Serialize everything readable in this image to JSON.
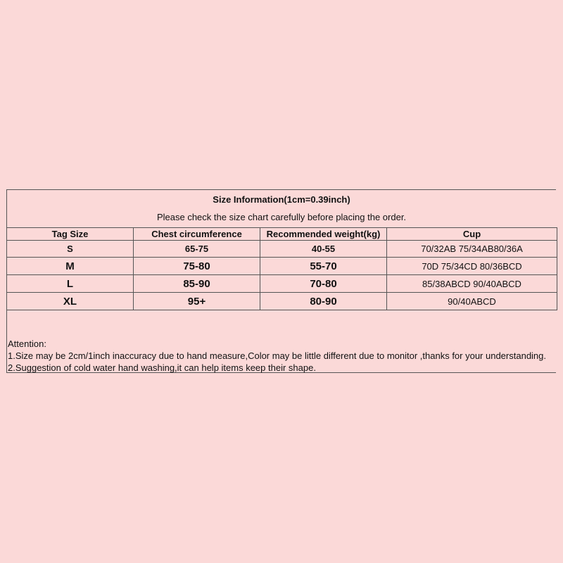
{
  "title": "Size Information(1cm=0.39inch)",
  "subtitle": "Please check the size chart carefully before placing the order.",
  "columns": [
    "Tag Size",
    "Chest circumference",
    "Recommended weight(kg)",
    "Cup"
  ],
  "rows": [
    [
      "S",
      "65-75",
      "40-55",
      "70/32AB 75/34AB80/36A"
    ],
    [
      "M",
      "75-80",
      "55-70",
      "70D 75/34CD 80/36BCD"
    ],
    [
      "L",
      "85-90",
      "70-80",
      "85/38ABCD 90/40ABCD"
    ],
    [
      "XL",
      "95+",
      "80-90",
      "90/40ABCD"
    ]
  ],
  "attention": {
    "heading": "Attention:",
    "lines": [
      "1.Size may be 2cm/1inch inaccuracy due to hand measure,Color may be little different due to monitor ,thanks for your understanding.",
      "2.Suggestion of cold water hand washing,it can help items keep their shape."
    ]
  }
}
